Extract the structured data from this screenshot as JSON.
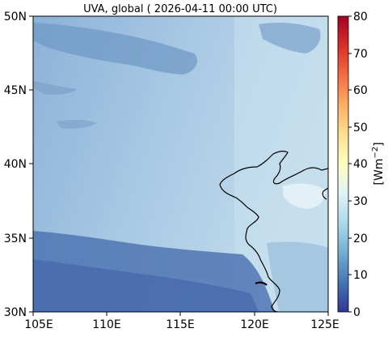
{
  "title": "UVA, global ( 2026-04-11 00:00 UTC)",
  "map": {
    "lat_ticks": [
      "50N",
      "45N",
      "40N",
      "35N",
      "30N"
    ],
    "lon_ticks": [
      "105E",
      "110E",
      "115E",
      "120E",
      "125E"
    ],
    "extent": {
      "lon": [
        105,
        125
      ],
      "lat": [
        30,
        50
      ]
    }
  },
  "colorbar": {
    "label": "[Wm",
    "label_sup": "−2",
    "label_end": "]",
    "ticks": [
      "80",
      "70",
      "60",
      "50",
      "40",
      "30",
      "20",
      "10",
      "0"
    ],
    "range": [
      0,
      80
    ],
    "colormap": "RdYlBu_r",
    "colors": [
      "#313695",
      "#4575b4",
      "#74add1",
      "#abd9e9",
      "#e0f3f8",
      "#ffffbf",
      "#fee090",
      "#fdae61",
      "#f46d43",
      "#d73027",
      "#a50026"
    ]
  }
}
